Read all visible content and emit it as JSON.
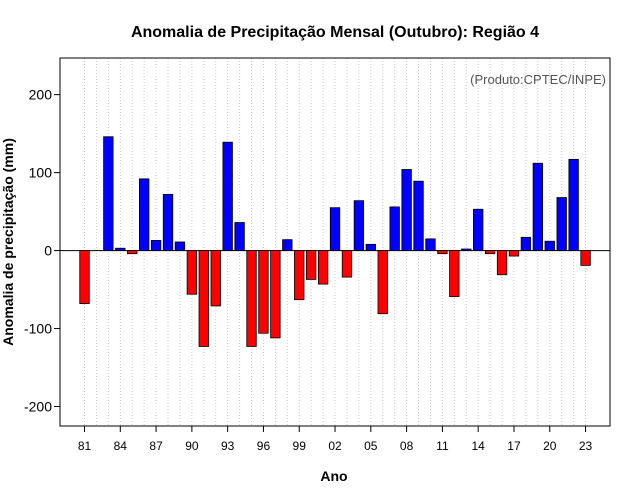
{
  "chart_data": {
    "type": "bar",
    "title": "Anomalia de Precipitação Mensal (Outubro): Região 4",
    "xlabel": "Ano",
    "ylabel": "Anomalia de precipitação (mm)",
    "source": "(Produto:CPTEC/INPE)",
    "ylim": [
      -225,
      247
    ],
    "yticks": [
      -200,
      -100,
      0,
      100,
      200
    ],
    "xtick_labels": [
      "81",
      "84",
      "87",
      "90",
      "93",
      "96",
      "99",
      "02",
      "05",
      "08",
      "11",
      "14",
      "17",
      "20",
      "23"
    ],
    "grid": true,
    "positive_color": "#0000ff",
    "negative_color": "#ff0000",
    "categories": [
      "1981",
      "1982",
      "1983",
      "1984",
      "1985",
      "1986",
      "1987",
      "1988",
      "1989",
      "1990",
      "1991",
      "1992",
      "1993",
      "1994",
      "1995",
      "1996",
      "1997",
      "1998",
      "1999",
      "2000",
      "2001",
      "2002",
      "2003",
      "2004",
      "2005",
      "2006",
      "2007",
      "2008",
      "2009",
      "2010",
      "2011",
      "2012",
      "2013",
      "2014",
      "2015",
      "2016",
      "2017",
      "2018",
      "2019",
      "2020",
      "2021",
      "2022",
      "2023"
    ],
    "values": [
      -68,
      0,
      146,
      3,
      -4,
      92,
      13,
      72,
      11,
      -56,
      -123,
      -71,
      139,
      36,
      -123,
      -106,
      -112,
      14,
      -63,
      -37,
      -43,
      55,
      -34,
      64,
      8,
      -81,
      56,
      104,
      89,
      15,
      -4,
      -59,
      2,
      53,
      -4,
      -31,
      -7,
      17,
      112,
      12,
      68,
      117,
      -19
    ]
  }
}
